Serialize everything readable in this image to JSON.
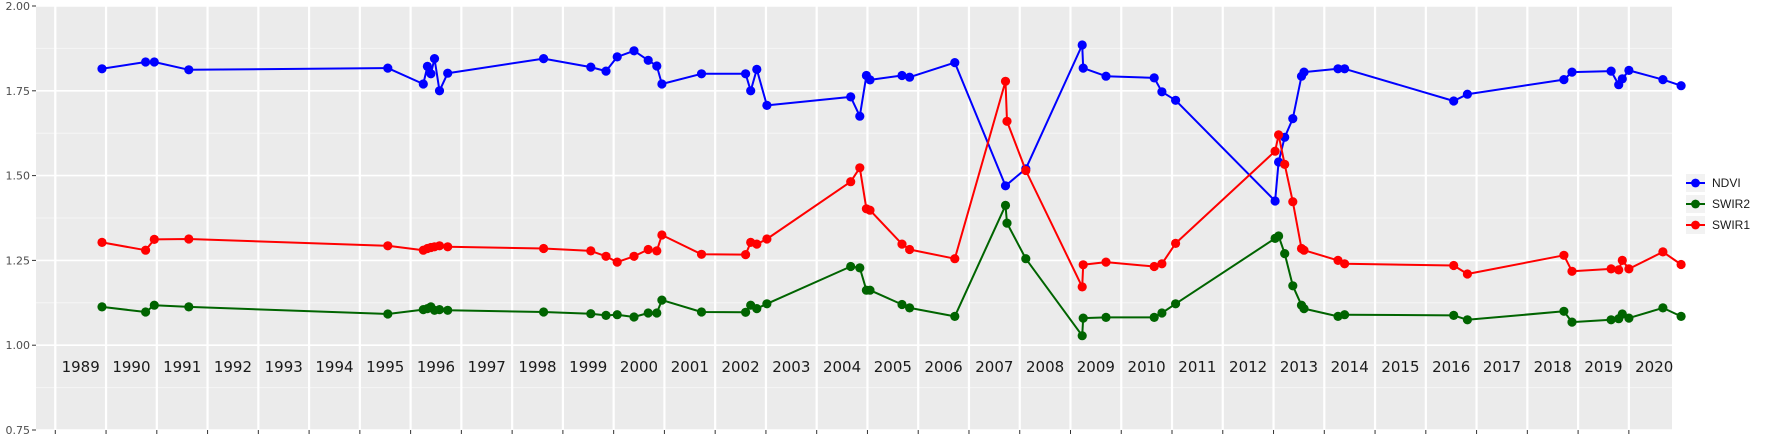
{
  "chart_data": {
    "type": "line",
    "title": "",
    "xlabel": "",
    "ylabel": "",
    "xlim": [
      1988.62,
      2020.85
    ],
    "ylim": [
      0.75,
      2.0
    ],
    "grid": true,
    "legend_position": "right",
    "y_ticks": [
      "0.75",
      "1.00",
      "1.25",
      "1.50",
      "1.75",
      "2.00"
    ],
    "year_labels": [
      "1989",
      "1990",
      "1991",
      "1992",
      "1993",
      "1994",
      "1995",
      "1996",
      "1997",
      "1998",
      "1999",
      "2000",
      "2001",
      "2002",
      "2003",
      "2004",
      "2005",
      "2006",
      "2007",
      "2008",
      "2009",
      "2010",
      "2011",
      "2012",
      "2013",
      "2014",
      "2015",
      "2016",
      "2017",
      "2018",
      "2019",
      "2020"
    ],
    "series": [
      {
        "name": "NDVI",
        "color": "#0000ff",
        "points": [
          [
            1989.92,
            1.815
          ],
          [
            1990.78,
            1.835
          ],
          [
            1990.95,
            1.835
          ],
          [
            1991.63,
            1.812
          ],
          [
            1995.55,
            1.817
          ],
          [
            1996.25,
            1.77
          ],
          [
            1996.33,
            1.822
          ],
          [
            1996.4,
            1.8
          ],
          [
            1996.47,
            1.845
          ],
          [
            1996.57,
            1.75
          ],
          [
            1996.73,
            1.802
          ],
          [
            1998.62,
            1.845
          ],
          [
            1999.55,
            1.82
          ],
          [
            1999.85,
            1.808
          ],
          [
            2000.07,
            1.85
          ],
          [
            2000.4,
            1.868
          ],
          [
            2000.68,
            1.84
          ],
          [
            2000.85,
            1.823
          ],
          [
            2000.95,
            1.77
          ],
          [
            2001.73,
            1.8
          ],
          [
            2002.6,
            1.8
          ],
          [
            2002.7,
            1.75
          ],
          [
            2002.82,
            1.813
          ],
          [
            2003.02,
            1.707
          ],
          [
            2004.67,
            1.732
          ],
          [
            2004.85,
            1.675
          ],
          [
            2004.98,
            1.795
          ],
          [
            2005.05,
            1.782
          ],
          [
            2005.68,
            1.795
          ],
          [
            2005.83,
            1.79
          ],
          [
            2006.72,
            1.833
          ],
          [
            2007.72,
            1.47
          ],
          [
            2008.12,
            1.52
          ],
          [
            2009.23,
            1.885
          ],
          [
            2009.25,
            1.817
          ],
          [
            2009.7,
            1.793
          ],
          [
            2010.65,
            1.788
          ],
          [
            2010.8,
            1.747
          ],
          [
            2011.07,
            1.722
          ],
          [
            2013.03,
            1.425
          ],
          [
            2013.1,
            1.54
          ],
          [
            2013.22,
            1.613
          ],
          [
            2013.38,
            1.668
          ],
          [
            2013.55,
            1.793
          ],
          [
            2013.6,
            1.805
          ],
          [
            2014.27,
            1.815
          ],
          [
            2014.4,
            1.815
          ],
          [
            2016.55,
            1.72
          ],
          [
            2016.82,
            1.74
          ],
          [
            2018.72,
            1.783
          ],
          [
            2018.88,
            1.805
          ],
          [
            2019.65,
            1.808
          ],
          [
            2019.8,
            1.768
          ],
          [
            2019.87,
            1.785
          ],
          [
            2020.0,
            1.81
          ],
          [
            2020.67,
            1.783
          ],
          [
            2021.03,
            1.765
          ]
        ]
      },
      {
        "name": "SWIR2",
        "color": "#006400",
        "points": [
          [
            1989.92,
            1.113
          ],
          [
            1990.78,
            1.098
          ],
          [
            1990.95,
            1.118
          ],
          [
            1991.63,
            1.113
          ],
          [
            1995.55,
            1.092
          ],
          [
            1996.25,
            1.105
          ],
          [
            1996.33,
            1.108
          ],
          [
            1996.4,
            1.113
          ],
          [
            1996.47,
            1.103
          ],
          [
            1996.57,
            1.105
          ],
          [
            1996.73,
            1.103
          ],
          [
            1998.62,
            1.098
          ],
          [
            1999.55,
            1.093
          ],
          [
            1999.85,
            1.088
          ],
          [
            2000.07,
            1.09
          ],
          [
            2000.4,
            1.083
          ],
          [
            2000.68,
            1.095
          ],
          [
            2000.85,
            1.095
          ],
          [
            2000.95,
            1.133
          ],
          [
            2001.73,
            1.098
          ],
          [
            2002.6,
            1.097
          ],
          [
            2002.7,
            1.118
          ],
          [
            2002.82,
            1.108
          ],
          [
            2003.02,
            1.122
          ],
          [
            2004.67,
            1.232
          ],
          [
            2004.85,
            1.228
          ],
          [
            2004.98,
            1.162
          ],
          [
            2005.05,
            1.162
          ],
          [
            2005.68,
            1.12
          ],
          [
            2005.83,
            1.11
          ],
          [
            2006.72,
            1.085
          ],
          [
            2007.72,
            1.412
          ],
          [
            2007.75,
            1.36
          ],
          [
            2008.12,
            1.255
          ],
          [
            2009.23,
            1.028
          ],
          [
            2009.25,
            1.08
          ],
          [
            2009.7,
            1.082
          ],
          [
            2010.65,
            1.082
          ],
          [
            2010.8,
            1.095
          ],
          [
            2011.07,
            1.122
          ],
          [
            2013.03,
            1.315
          ],
          [
            2013.1,
            1.322
          ],
          [
            2013.22,
            1.27
          ],
          [
            2013.38,
            1.175
          ],
          [
            2013.55,
            1.118
          ],
          [
            2013.6,
            1.108
          ],
          [
            2014.27,
            1.085
          ],
          [
            2014.4,
            1.09
          ],
          [
            2016.55,
            1.088
          ],
          [
            2016.82,
            1.075
          ],
          [
            2018.72,
            1.1
          ],
          [
            2018.88,
            1.068
          ],
          [
            2019.65,
            1.075
          ],
          [
            2019.8,
            1.078
          ],
          [
            2019.87,
            1.092
          ],
          [
            2020.0,
            1.08
          ],
          [
            2020.67,
            1.11
          ],
          [
            2021.03,
            1.085
          ]
        ]
      },
      {
        "name": "SWIR1",
        "color": "#ff0000",
        "points": [
          [
            1989.92,
            1.303
          ],
          [
            1990.78,
            1.28
          ],
          [
            1990.95,
            1.312
          ],
          [
            1991.63,
            1.313
          ],
          [
            1995.55,
            1.293
          ],
          [
            1996.25,
            1.28
          ],
          [
            1996.33,
            1.285
          ],
          [
            1996.4,
            1.288
          ],
          [
            1996.47,
            1.29
          ],
          [
            1996.57,
            1.293
          ],
          [
            1996.73,
            1.29
          ],
          [
            1998.62,
            1.285
          ],
          [
            1999.55,
            1.278
          ],
          [
            1999.85,
            1.262
          ],
          [
            2000.07,
            1.245
          ],
          [
            2000.4,
            1.262
          ],
          [
            2000.68,
            1.282
          ],
          [
            2000.85,
            1.278
          ],
          [
            2000.95,
            1.325
          ],
          [
            2001.73,
            1.268
          ],
          [
            2002.6,
            1.267
          ],
          [
            2002.7,
            1.303
          ],
          [
            2002.82,
            1.298
          ],
          [
            2003.02,
            1.313
          ],
          [
            2004.67,
            1.482
          ],
          [
            2004.85,
            1.523
          ],
          [
            2004.98,
            1.402
          ],
          [
            2005.05,
            1.398
          ],
          [
            2005.68,
            1.298
          ],
          [
            2005.83,
            1.282
          ],
          [
            2006.72,
            1.255
          ],
          [
            2007.72,
            1.778
          ],
          [
            2007.75,
            1.66
          ],
          [
            2008.12,
            1.515
          ],
          [
            2009.23,
            1.172
          ],
          [
            2009.25,
            1.237
          ],
          [
            2009.7,
            1.245
          ],
          [
            2010.65,
            1.232
          ],
          [
            2010.8,
            1.24
          ],
          [
            2011.07,
            1.3
          ],
          [
            2013.03,
            1.572
          ],
          [
            2013.1,
            1.62
          ],
          [
            2013.22,
            1.533
          ],
          [
            2013.38,
            1.423
          ],
          [
            2013.55,
            1.285
          ],
          [
            2013.6,
            1.28
          ],
          [
            2014.27,
            1.25
          ],
          [
            2014.4,
            1.24
          ],
          [
            2016.55,
            1.235
          ],
          [
            2016.82,
            1.21
          ],
          [
            2018.72,
            1.265
          ],
          [
            2018.88,
            1.218
          ],
          [
            2019.65,
            1.225
          ],
          [
            2019.8,
            1.222
          ],
          [
            2019.87,
            1.25
          ],
          [
            2020.0,
            1.225
          ],
          [
            2020.67,
            1.275
          ],
          [
            2021.03,
            1.238
          ]
        ]
      }
    ]
  }
}
